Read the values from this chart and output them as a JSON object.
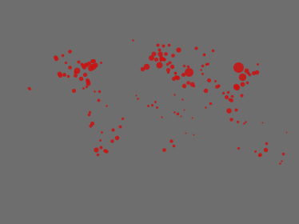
{
  "background_color": "#6e6e6e",
  "land_color": "#111111",
  "dot_color": "#cc1111",
  "border_color": "#444444",
  "fig_bg": "#6e6e6e",
  "cases": [
    {
      "lon": -77.0,
      "lat": 39.0,
      "size": 120
    },
    {
      "lon": -95.0,
      "lat": 37.0,
      "size": 140
    },
    {
      "lon": -118.0,
      "lat": 34.0,
      "size": 80
    },
    {
      "lon": -87.0,
      "lat": 41.5,
      "size": 70
    },
    {
      "lon": -74.0,
      "lat": 40.7,
      "size": 150
    },
    {
      "lon": -99.0,
      "lat": 19.4,
      "size": 60
    },
    {
      "lon": -58.4,
      "lat": -34.6,
      "size": 50
    },
    {
      "lon": -43.2,
      "lat": -22.9,
      "size": 70
    },
    {
      "lon": -47.9,
      "lat": -15.8,
      "size": 40
    },
    {
      "lon": -70.6,
      "lat": -33.4,
      "size": 90
    },
    {
      "lon": -79.5,
      "lat": -2.2,
      "size": 30
    },
    {
      "lon": -66.9,
      "lat": 10.5,
      "size": 35
    },
    {
      "lon": 2.35,
      "lat": 48.85,
      "size": 110
    },
    {
      "lon": 13.4,
      "lat": 52.5,
      "size": 90
    },
    {
      "lon": 12.5,
      "lat": 41.9,
      "size": 150
    },
    {
      "lon": 4.9,
      "lat": 52.4,
      "size": 80
    },
    {
      "lon": -3.7,
      "lat": 40.4,
      "size": 130
    },
    {
      "lon": 8.7,
      "lat": 47.5,
      "size": 60
    },
    {
      "lon": 14.5,
      "lat": 47.8,
      "size": 50
    },
    {
      "lon": 23.7,
      "lat": 37.9,
      "size": 60
    },
    {
      "lon": 28.9,
      "lat": 41.0,
      "size": 70
    },
    {
      "lon": 30.5,
      "lat": 50.5,
      "size": 50
    },
    {
      "lon": 37.6,
      "lat": 55.75,
      "size": 90
    },
    {
      "lon": 44.4,
      "lat": 33.3,
      "size": 60
    },
    {
      "lon": 51.4,
      "lat": 35.7,
      "size": 280
    },
    {
      "lon": 55.3,
      "lat": 25.3,
      "size": 80
    },
    {
      "lon": 45.3,
      "lat": 23.9,
      "size": 70
    },
    {
      "lon": 36.8,
      "lat": 31.0,
      "size": 70
    },
    {
      "lon": 72.9,
      "lat": 19.1,
      "size": 70
    },
    {
      "lon": 77.2,
      "lat": 28.6,
      "size": 60
    },
    {
      "lon": 88.3,
      "lat": 22.6,
      "size": 50
    },
    {
      "lon": 106.7,
      "lat": 10.8,
      "size": 55
    },
    {
      "lon": 100.5,
      "lat": 13.7,
      "size": 60
    },
    {
      "lon": 103.8,
      "lat": 1.35,
      "size": 100
    },
    {
      "lon": 114.2,
      "lat": 22.3,
      "size": 120
    },
    {
      "lon": 121.5,
      "lat": 25.0,
      "size": 80
    },
    {
      "lon": 126.9,
      "lat": 37.5,
      "size": 80
    },
    {
      "lon": 116.4,
      "lat": 39.9,
      "size": 400
    },
    {
      "lon": 121.4,
      "lat": 31.2,
      "size": 200
    },
    {
      "lon": 113.3,
      "lat": 23.1,
      "size": 130
    },
    {
      "lon": 135.5,
      "lat": 34.7,
      "size": 60
    },
    {
      "lon": 139.7,
      "lat": 35.7,
      "size": 70
    },
    {
      "lon": 151.2,
      "lat": -33.9,
      "size": 70
    },
    {
      "lon": 144.9,
      "lat": -37.8,
      "size": 50
    },
    {
      "lon": 174.8,
      "lat": -36.9,
      "size": 30
    },
    {
      "lon": 18.4,
      "lat": -33.9,
      "size": 50
    },
    {
      "lon": 36.8,
      "lat": -1.3,
      "size": 30
    },
    {
      "lon": 3.4,
      "lat": 6.5,
      "size": 25
    },
    {
      "lon": 9.7,
      "lat": 4.0,
      "size": 20
    },
    {
      "lon": -15.6,
      "lat": 11.9,
      "size": 15
    },
    {
      "lon": 106.8,
      "lat": -6.2,
      "size": 45
    },
    {
      "lon": 120.0,
      "lat": 15.0,
      "size": 40
    },
    {
      "lon": 115.0,
      "lat": -8.7,
      "size": 25
    },
    {
      "lon": 34.8,
      "lat": 31.2,
      "size": 60
    },
    {
      "lon": 31.2,
      "lat": 30.1,
      "size": 60
    },
    {
      "lon": -9.1,
      "lat": 38.7,
      "size": 70
    },
    {
      "lon": 19.0,
      "lat": 47.5,
      "size": 40
    },
    {
      "lon": 21.0,
      "lat": 52.2,
      "size": 50
    },
    {
      "lon": 26.1,
      "lat": 44.4,
      "size": 40
    },
    {
      "lon": 69.3,
      "lat": 41.3,
      "size": 30
    },
    {
      "lon": 74.6,
      "lat": 42.9,
      "size": 25
    },
    {
      "lon": 71.4,
      "lat": 51.2,
      "size": 30
    },
    {
      "lon": 60.6,
      "lat": 56.8,
      "size": 40
    },
    {
      "lon": 82.9,
      "lat": 55.0,
      "size": 30
    },
    {
      "lon": -105.0,
      "lat": 54.0,
      "size": 50
    },
    {
      "lon": -75.7,
      "lat": 45.4,
      "size": 55
    },
    {
      "lon": -123.1,
      "lat": 49.2,
      "size": 50
    },
    {
      "lon": -110.0,
      "lat": 44.0,
      "size": 25
    },
    {
      "lon": -80.2,
      "lat": 25.8,
      "size": 80
    },
    {
      "lon": -122.3,
      "lat": 47.6,
      "size": 70
    },
    {
      "lon": -71.1,
      "lat": 42.4,
      "size": 90
    },
    {
      "lon": -84.4,
      "lat": 33.7,
      "size": 65
    },
    {
      "lon": -90.2,
      "lat": 29.9,
      "size": 70
    },
    {
      "lon": -93.3,
      "lat": 44.9,
      "size": 40
    },
    {
      "lon": -104.9,
      "lat": 39.7,
      "size": 50
    },
    {
      "lon": -112.1,
      "lat": 33.4,
      "size": 55
    },
    {
      "lon": -117.1,
      "lat": 32.7,
      "size": 65
    },
    {
      "lon": -157.8,
      "lat": 21.3,
      "size": 30
    },
    {
      "lon": -66.1,
      "lat": 18.5,
      "size": 28
    },
    {
      "lon": -82.4,
      "lat": 23.1,
      "size": 25
    },
    {
      "lon": -57.0,
      "lat": 5.8,
      "size": 15
    },
    {
      "lon": -72.3,
      "lat": 18.5,
      "size": 15
    },
    {
      "lon": 24.9,
      "lat": 60.2,
      "size": 30
    },
    {
      "lon": 10.7,
      "lat": 59.9,
      "size": 40
    },
    {
      "lon": 18.1,
      "lat": 59.3,
      "size": 40
    },
    {
      "lon": 12.6,
      "lat": 55.7,
      "size": 40
    },
    {
      "lon": -22.0,
      "lat": 64.1,
      "size": 15
    },
    {
      "lon": 15.0,
      "lat": 46.1,
      "size": 30
    },
    {
      "lon": 16.4,
      "lat": 48.2,
      "size": 50
    },
    {
      "lon": 33.4,
      "lat": 35.1,
      "size": 30
    },
    {
      "lon": 50.6,
      "lat": 26.2,
      "size": 50
    },
    {
      "lon": 57.5,
      "lat": 23.6,
      "size": 25
    },
    {
      "lon": 43.1,
      "lat": 11.6,
      "size": 12
    },
    {
      "lon": 32.5,
      "lat": 15.6,
      "size": 12
    },
    {
      "lon": 45.3,
      "lat": 2.0,
      "size": 8
    },
    {
      "lon": -17.4,
      "lat": 14.7,
      "size": 8
    },
    {
      "lon": 125.6,
      "lat": -8.6,
      "size": 15
    },
    {
      "lon": 147.2,
      "lat": -9.4,
      "size": 8
    },
    {
      "lon": 178.4,
      "lat": -18.1,
      "size": 8
    },
    {
      "lon": -83.0,
      "lat": 42.0,
      "size": 55
    },
    {
      "lon": -73.5,
      "lat": 45.5,
      "size": 60
    },
    {
      "lon": -79.4,
      "lat": 43.7,
      "size": 65
    },
    {
      "lon": -63.6,
      "lat": 44.6,
      "size": 20
    },
    {
      "lon": -114.1,
      "lat": 51.0,
      "size": 30
    },
    {
      "lon": -89.4,
      "lat": 43.1,
      "size": 35
    },
    {
      "lon": -86.2,
      "lat": 39.8,
      "size": 50
    },
    {
      "lon": -83.7,
      "lat": 42.7,
      "size": 45
    },
    {
      "lon": -97.5,
      "lat": 35.5,
      "size": 40
    },
    {
      "lon": -96.8,
      "lat": 32.8,
      "size": 55
    },
    {
      "lon": -106.5,
      "lat": 31.8,
      "size": 30
    },
    {
      "lon": -81.4,
      "lat": 28.5,
      "size": 60
    },
    {
      "lon": -80.2,
      "lat": 27.0,
      "size": 55
    },
    {
      "lon": -156.5,
      "lat": 20.9,
      "size": 20
    },
    {
      "lon": -86.8,
      "lat": 21.2,
      "size": 20
    },
    {
      "lon": -75.5,
      "lat": -10.0,
      "size": 60
    },
    {
      "lon": -64.2,
      "lat": -31.4,
      "size": 40
    },
    {
      "lon": -56.2,
      "lat": -34.9,
      "size": 45
    },
    {
      "lon": -38.5,
      "lat": -12.9,
      "size": 35
    },
    {
      "lon": -35.2,
      "lat": -5.8,
      "size": 25
    },
    {
      "lon": -49.3,
      "lat": -25.4,
      "size": 45
    },
    {
      "lon": 28.0,
      "lat": -26.0,
      "size": 45
    },
    {
      "lon": 31.0,
      "lat": -29.9,
      "size": 30
    },
    {
      "lon": -1.6,
      "lat": 5.6,
      "size": 20
    },
    {
      "lon": 7.5,
      "lat": 9.1,
      "size": 20
    },
    {
      "lon": 32.6,
      "lat": 0.3,
      "size": 15
    },
    {
      "lon": 15.3,
      "lat": -4.3,
      "size": 12
    },
    {
      "lon": 40.5,
      "lat": -3.4,
      "size": 10
    },
    {
      "lon": 55.5,
      "lat": -4.7,
      "size": 8
    },
    {
      "lon": 57.6,
      "lat": -20.2,
      "size": 8
    },
    {
      "lon": 47.5,
      "lat": -18.9,
      "size": 8
    },
    {
      "lon": 90.4,
      "lat": 23.7,
      "size": 40
    },
    {
      "lon": 80.0,
      "lat": 7.9,
      "size": 30
    },
    {
      "lon": 85.3,
      "lat": 27.7,
      "size": 20
    },
    {
      "lon": 73.5,
      "lat": 4.2,
      "size": 15
    },
    {
      "lon": 96.2,
      "lat": 16.8,
      "size": 25
    },
    {
      "lon": 102.6,
      "lat": 17.9,
      "size": 30
    },
    {
      "lon": 104.9,
      "lat": 11.6,
      "size": 35
    },
    {
      "lon": 112.5,
      "lat": 2.0,
      "size": 40
    },
    {
      "lon": 108.0,
      "lat": 14.1,
      "size": 30
    },
    {
      "lon": 123.0,
      "lat": -10.2,
      "size": 15
    },
    {
      "lon": 128.0,
      "lat": 26.2,
      "size": 30
    },
    {
      "lon": 129.0,
      "lat": 35.1,
      "size": 35
    },
    {
      "lon": 130.4,
      "lat": 33.6,
      "size": 30
    },
    {
      "lon": 141.0,
      "lat": 43.1,
      "size": 20
    },
    {
      "lon": 143.2,
      "lat": -38.5,
      "size": 25
    },
    {
      "lon": 153.0,
      "lat": -27.5,
      "size": 30
    },
    {
      "lon": 115.9,
      "lat": -32.0,
      "size": 25
    },
    {
      "lon": 138.6,
      "lat": -34.9,
      "size": 20
    },
    {
      "lon": 170.5,
      "lat": -45.9,
      "size": 15
    },
    {
      "lon": 172.6,
      "lat": -43.5,
      "size": 12
    },
    {
      "lon": -68.0,
      "lat": -38.0,
      "size": 30
    },
    {
      "lon": -65.2,
      "lat": -24.8,
      "size": 20
    },
    {
      "lon": -63.2,
      "lat": -17.8,
      "size": 18
    },
    {
      "lon": -78.5,
      "lat": -0.2,
      "size": 25
    },
    {
      "lon": -77.0,
      "lat": -12.0,
      "size": 40
    },
    {
      "lon": 24.0,
      "lat": 35.5,
      "size": 25
    },
    {
      "lon": 33.0,
      "lat": 35.2,
      "size": 20
    },
    {
      "lon": 14.4,
      "lat": 50.1,
      "size": 40
    },
    {
      "lon": 17.1,
      "lat": 48.1,
      "size": 35
    },
    {
      "lon": 19.0,
      "lat": 47.5,
      "size": 40
    },
    {
      "lon": 23.3,
      "lat": 42.7,
      "size": 30
    },
    {
      "lon": 44.8,
      "lat": 41.7,
      "size": 25
    },
    {
      "lon": 49.9,
      "lat": 40.4,
      "size": 30
    },
    {
      "lon": 69.2,
      "lat": 34.5,
      "size": 20
    },
    {
      "lon": 67.0,
      "lat": 37.9,
      "size": 15
    },
    {
      "lon": 74.6,
      "lat": 42.9,
      "size": 15
    },
    {
      "lon": 76.9,
      "lat": 43.3,
      "size": 12
    },
    {
      "lon": 71.4,
      "lat": 51.1,
      "size": 18
    },
    {
      "lon": 76.8,
      "lat": 43.2,
      "size": 12
    }
  ]
}
